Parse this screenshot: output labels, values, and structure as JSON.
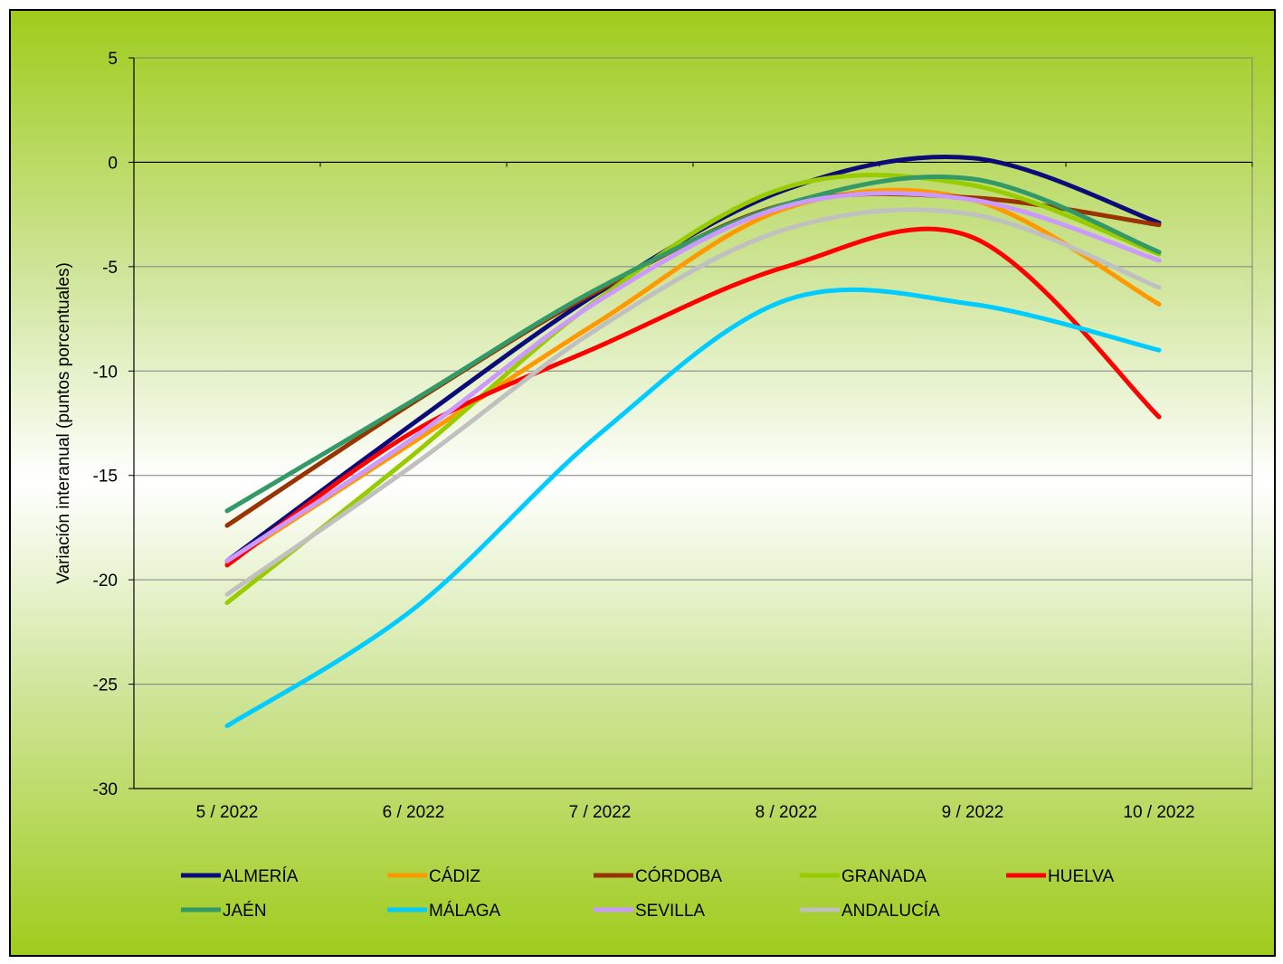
{
  "chart_data": {
    "type": "line",
    "title": "",
    "xlabel": "",
    "ylabel": "Variación interanual (puntos porcentuales)",
    "categories": [
      "5 / 2022",
      "6 / 2022",
      "7 / 2022",
      "8 / 2022",
      "9 / 2022",
      "10 / 2022"
    ],
    "ylim": [
      -30,
      5
    ],
    "yticks": [
      5,
      0,
      -5,
      -10,
      -15,
      -20,
      -25,
      -30
    ],
    "grid": "horizontal",
    "legend_position": "bottom",
    "smooth": true,
    "series": [
      {
        "name": "ALMERÍA",
        "color": "#0b0b7a",
        "values": [
          -19.1,
          -12.5,
          -6.2,
          -1.3,
          0.2,
          -2.9
        ]
      },
      {
        "name": "CÁDIZ",
        "color": "#ff9900",
        "values": [
          -19.2,
          -13.4,
          -7.6,
          -2.2,
          -1.8,
          -6.8
        ]
      },
      {
        "name": "CÓRDOBA",
        "color": "#993300",
        "values": [
          -17.4,
          -11.5,
          -6.1,
          -2.0,
          -1.7,
          -3.0
        ]
      },
      {
        "name": "GRANADA",
        "color": "#99cc00",
        "values": [
          -21.1,
          -14.0,
          -6.5,
          -1.2,
          -1.1,
          -4.4
        ]
      },
      {
        "name": "HUELVA",
        "color": "#ff0000",
        "values": [
          -19.3,
          -12.9,
          -8.8,
          -5.0,
          -3.6,
          -12.2
        ]
      },
      {
        "name": "JAÉN",
        "color": "#339966",
        "values": [
          -16.7,
          -11.4,
          -6.0,
          -2.0,
          -0.8,
          -4.3
        ]
      },
      {
        "name": "MÁLAGA",
        "color": "#00ccff",
        "values": [
          -27.0,
          -21.4,
          -13.0,
          -6.6,
          -6.8,
          -9.0
        ]
      },
      {
        "name": "SEVILLA",
        "color": "#cc99ff",
        "values": [
          -19.1,
          -13.2,
          -6.6,
          -2.1,
          -1.8,
          -4.7
        ]
      },
      {
        "name": "ANDALUCÍA",
        "color": "#c0c0c0",
        "values": [
          -20.7,
          -14.5,
          -7.9,
          -3.2,
          -2.5,
          -6.0
        ]
      }
    ]
  }
}
